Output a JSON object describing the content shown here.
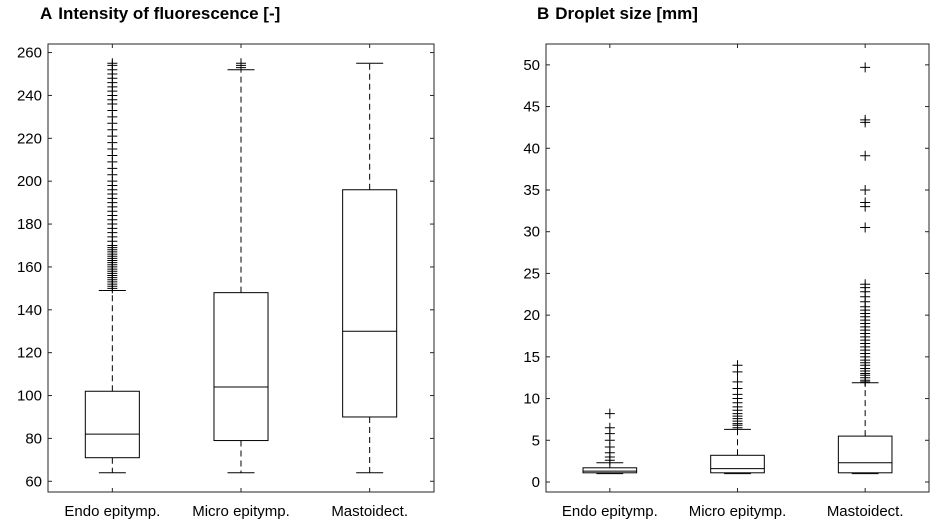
{
  "chart_data": [
    {
      "type": "box",
      "panel": "A",
      "title": "Intensity of fluorescence [-]",
      "categories": [
        "Endo epitymp.",
        "Micro epitymp.",
        "Mastoidect."
      ],
      "ylim": [
        55,
        264
      ],
      "yticks": [
        60,
        80,
        100,
        120,
        140,
        160,
        180,
        200,
        220,
        240,
        260
      ],
      "boxes": [
        {
          "category": "Endo epitymp.",
          "whisker_low": 64,
          "q1": 71,
          "median": 82,
          "q3": 102,
          "whisker_high": 149,
          "outliers": [
            150,
            151,
            152,
            153,
            154,
            155,
            156,
            157,
            158,
            159,
            160,
            161,
            162,
            163,
            164,
            165,
            166,
            167,
            168,
            169,
            170,
            172,
            174,
            176,
            178,
            180,
            182,
            184,
            186,
            188,
            190,
            192,
            194,
            196,
            198,
            200,
            203,
            206,
            209,
            212,
            215,
            218,
            221,
            224,
            227,
            230,
            233,
            236,
            238,
            240,
            242,
            244,
            246,
            248,
            250,
            252,
            254,
            255
          ]
        },
        {
          "category": "Micro epitymp.",
          "whisker_low": 64,
          "q1": 79,
          "median": 104,
          "q3": 148,
          "whisker_high": 252,
          "outliers": [
            253,
            254,
            255
          ]
        },
        {
          "category": "Mastoidect.",
          "whisker_low": 64,
          "q1": 90,
          "median": 130,
          "q3": 196,
          "whisker_high": 255,
          "outliers": []
        }
      ],
      "grid": false
    },
    {
      "type": "box",
      "panel": "B",
      "title": "Droplet size [mm]",
      "categories": [
        "Endo epitymp.",
        "Micro epitymp.",
        "Mastoidect."
      ],
      "ylim": [
        -1.2,
        52.5
      ],
      "yticks": [
        0,
        5,
        10,
        15,
        20,
        25,
        30,
        35,
        40,
        45,
        50
      ],
      "boxes": [
        {
          "category": "Endo epitymp.",
          "whisker_low": 1.0,
          "q1": 1.1,
          "median": 1.3,
          "q3": 1.7,
          "whisker_high": 2.3,
          "outliers": [
            2.6,
            3.0,
            3.5,
            4.2,
            5.0,
            5.8,
            6.5,
            8.2
          ]
        },
        {
          "category": "Micro epitymp.",
          "whisker_low": 1.0,
          "q1": 1.1,
          "median": 1.6,
          "q3": 3.2,
          "whisker_high": 6.3,
          "outliers": [
            6.5,
            6.8,
            7.0,
            7.3,
            7.6,
            7.9,
            8.2,
            8.6,
            9.0,
            9.5,
            10.0,
            10.5,
            11.2,
            12.0,
            13.2,
            14.0
          ]
        },
        {
          "category": "Mastoidect.",
          "whisker_low": 1.0,
          "q1": 1.1,
          "median": 2.3,
          "q3": 5.5,
          "whisker_high": 11.9,
          "outliers": [
            12.0,
            12.2,
            12.5,
            12.8,
            13.0,
            13.3,
            13.6,
            14.0,
            14.3,
            14.6,
            15.0,
            15.4,
            15.8,
            16.2,
            16.6,
            17.0,
            17.4,
            17.8,
            18.2,
            18.6,
            19.0,
            19.4,
            19.8,
            20.2,
            20.6,
            21.0,
            21.6,
            22.2,
            22.8,
            23.3,
            23.7,
            30.5,
            33.0,
            33.5,
            35.0,
            39.1,
            43.1,
            43.4,
            49.7
          ]
        }
      ],
      "grid": false
    }
  ],
  "panel_a": {
    "letter": "A",
    "title": "Intensity of fluorescence [-]"
  },
  "panel_b": {
    "letter": "B",
    "title": "Droplet size [mm]"
  }
}
